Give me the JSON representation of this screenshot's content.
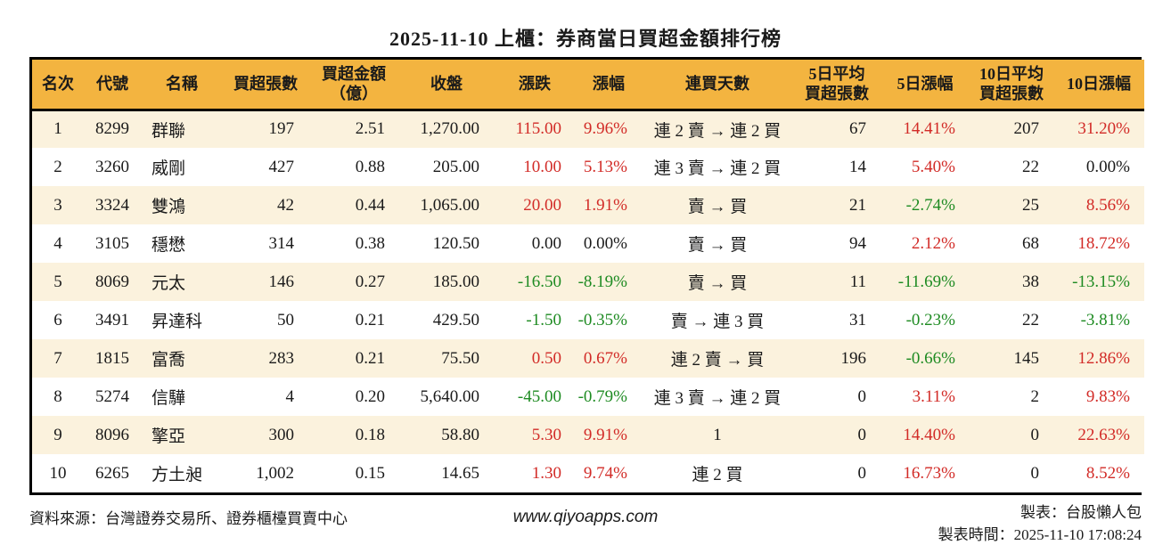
{
  "title": "2025-11-10 上櫃：券商當日買超金額排行榜",
  "colors": {
    "up": "#d22b27",
    "down": "#1e8b22",
    "flat": "#1a1a1a",
    "header_bg": "#f3b440",
    "row_alt_bg": "#fbf2dd"
  },
  "chart_data": {
    "type": "table",
    "title": "2025-11-10 上櫃：券商當日買超金額排行榜",
    "columns": [
      "名次",
      "代號",
      "名稱",
      "買超張數",
      "買超金額\n（億）",
      "收盤",
      "漲跌",
      "漲幅",
      "連買天數",
      "5日平均\n買超張數",
      "5日漲幅",
      "10日平均\n買超張數",
      "10日漲幅"
    ],
    "rows": [
      {
        "rank": "1",
        "code": "8299",
        "name": "群聯",
        "buy_volume": "197",
        "buy_amount": "2.51",
        "close": "1,270.00",
        "change": "115.00",
        "change_color": "up",
        "change_pct": "9.96%",
        "change_pct_color": "up",
        "streak": "連 2 賣 → 連 2 買",
        "avg5_volume": "67",
        "pct5": "14.41%",
        "pct5_color": "up",
        "avg10_volume": "207",
        "pct10": "31.20%",
        "pct10_color": "up"
      },
      {
        "rank": "2",
        "code": "3260",
        "name": "威剛",
        "buy_volume": "427",
        "buy_amount": "0.88",
        "close": "205.00",
        "change": "10.00",
        "change_color": "up",
        "change_pct": "5.13%",
        "change_pct_color": "up",
        "streak": "連 3 賣 → 連 2 買",
        "avg5_volume": "14",
        "pct5": "5.40%",
        "pct5_color": "up",
        "avg10_volume": "22",
        "pct10": "0.00%",
        "pct10_color": "flat"
      },
      {
        "rank": "3",
        "code": "3324",
        "name": "雙鴻",
        "buy_volume": "42",
        "buy_amount": "0.44",
        "close": "1,065.00",
        "change": "20.00",
        "change_color": "up",
        "change_pct": "1.91%",
        "change_pct_color": "up",
        "streak": "賣 → 買",
        "avg5_volume": "21",
        "pct5": "-2.74%",
        "pct5_color": "down",
        "avg10_volume": "25",
        "pct10": "8.56%",
        "pct10_color": "up"
      },
      {
        "rank": "4",
        "code": "3105",
        "name": "穩懋",
        "buy_volume": "314",
        "buy_amount": "0.38",
        "close": "120.50",
        "change": "0.00",
        "change_color": "flat",
        "change_pct": "0.00%",
        "change_pct_color": "flat",
        "streak": "賣 → 買",
        "avg5_volume": "94",
        "pct5": "2.12%",
        "pct5_color": "up",
        "avg10_volume": "68",
        "pct10": "18.72%",
        "pct10_color": "up"
      },
      {
        "rank": "5",
        "code": "8069",
        "name": "元太",
        "buy_volume": "146",
        "buy_amount": "0.27",
        "close": "185.00",
        "change": "-16.50",
        "change_color": "down",
        "change_pct": "-8.19%",
        "change_pct_color": "down",
        "streak": "賣 → 買",
        "avg5_volume": "11",
        "pct5": "-11.69%",
        "pct5_color": "down",
        "avg10_volume": "38",
        "pct10": "-13.15%",
        "pct10_color": "down"
      },
      {
        "rank": "6",
        "code": "3491",
        "name": "昇達科",
        "buy_volume": "50",
        "buy_amount": "0.21",
        "close": "429.50",
        "change": "-1.50",
        "change_color": "down",
        "change_pct": "-0.35%",
        "change_pct_color": "down",
        "streak": "賣 → 連 3 買",
        "avg5_volume": "31",
        "pct5": "-0.23%",
        "pct5_color": "down",
        "avg10_volume": "22",
        "pct10": "-3.81%",
        "pct10_color": "down"
      },
      {
        "rank": "7",
        "code": "1815",
        "name": "富喬",
        "buy_volume": "283",
        "buy_amount": "0.21",
        "close": "75.50",
        "change": "0.50",
        "change_color": "up",
        "change_pct": "0.67%",
        "change_pct_color": "up",
        "streak": "連 2 賣 → 買",
        "avg5_volume": "196",
        "pct5": "-0.66%",
        "pct5_color": "down",
        "avg10_volume": "145",
        "pct10": "12.86%",
        "pct10_color": "up"
      },
      {
        "rank": "8",
        "code": "5274",
        "name": "信驊",
        "buy_volume": "4",
        "buy_amount": "0.20",
        "close": "5,640.00",
        "change": "-45.00",
        "change_color": "down",
        "change_pct": "-0.79%",
        "change_pct_color": "down",
        "streak": "連 3 賣 → 連 2 買",
        "avg5_volume": "0",
        "pct5": "3.11%",
        "pct5_color": "up",
        "avg10_volume": "2",
        "pct10": "9.83%",
        "pct10_color": "up"
      },
      {
        "rank": "9",
        "code": "8096",
        "name": "擎亞",
        "buy_volume": "300",
        "buy_amount": "0.18",
        "close": "58.80",
        "change": "5.30",
        "change_color": "up",
        "change_pct": "9.91%",
        "change_pct_color": "up",
        "streak": "1",
        "avg5_volume": "0",
        "pct5": "14.40%",
        "pct5_color": "up",
        "avg10_volume": "0",
        "pct10": "22.63%",
        "pct10_color": "up"
      },
      {
        "rank": "10",
        "code": "6265",
        "name": "方土昶",
        "buy_volume": "1,002",
        "buy_amount": "0.15",
        "close": "14.65",
        "change": "1.30",
        "change_color": "up",
        "change_pct": "9.74%",
        "change_pct_color": "up",
        "streak": "連 2 買",
        "avg5_volume": "0",
        "pct5": "16.73%",
        "pct5_color": "up",
        "avg10_volume": "0",
        "pct10": "8.52%",
        "pct10_color": "up"
      }
    ]
  },
  "footer": {
    "source": "資料來源：台灣證券交易所、證券櫃檯買賣中心",
    "website": "www.qiyoapps.com",
    "maker": "製表：台股懶人包",
    "made_time": "製表時間：2025-11-10 17:08:24"
  }
}
